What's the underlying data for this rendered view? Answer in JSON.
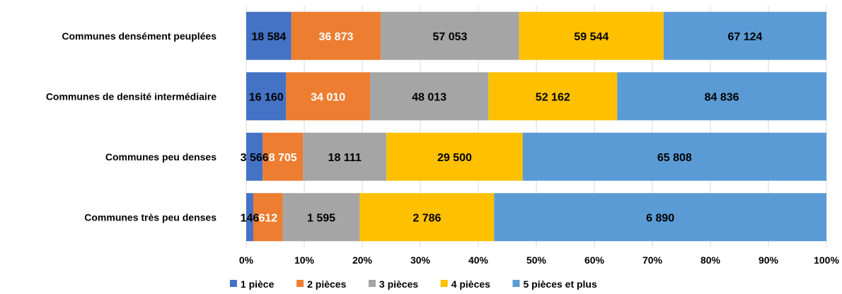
{
  "chart_data": {
    "type": "bar",
    "orientation": "horizontal",
    "stacked": "percent",
    "title": "",
    "xlabel": "",
    "ylabel": "",
    "categories": [
      "Communes densément peuplées",
      "Communes de densité intermédiaire",
      "Communes peu denses",
      "Communes très peu denses"
    ],
    "series": [
      {
        "name": "1 pièce",
        "color": "#4472C4",
        "label_color": "#000000",
        "values": [
          18584,
          16160,
          3566,
          146
        ],
        "labels": [
          "18 584",
          "16 160",
          "3 566",
          "146"
        ]
      },
      {
        "name": "2 pièces",
        "color": "#ED7D31",
        "label_color": "#ffffff",
        "values": [
          36873,
          34010,
          8705,
          612
        ],
        "labels": [
          "36 873",
          "34 010",
          "8 705",
          "612"
        ]
      },
      {
        "name": "3 pièces",
        "color": "#A5A5A5",
        "label_color": "#000000",
        "values": [
          57053,
          48013,
          18111,
          1595
        ],
        "labels": [
          "57 053",
          "48 013",
          "18 111",
          "1 595"
        ]
      },
      {
        "name": "4 pièces",
        "color": "#FFC000",
        "label_color": "#000000",
        "values": [
          59544,
          52162,
          29500,
          2786
        ],
        "labels": [
          "59 544",
          "52 162",
          "29 500",
          "2 786"
        ]
      },
      {
        "name": "5 pièces et plus",
        "color": "#5B9BD5",
        "label_color": "#000000",
        "values": [
          67124,
          84836,
          65808,
          6890
        ],
        "labels": [
          "67 124",
          "84 836",
          "65 808",
          "6 890"
        ]
      }
    ],
    "x_ticks": [
      "0%",
      "10%",
      "20%",
      "30%",
      "40%",
      "50%",
      "60%",
      "70%",
      "80%",
      "90%",
      "100%"
    ],
    "xlim": [
      0,
      100
    ],
    "grid": true,
    "legend": "bottom"
  }
}
